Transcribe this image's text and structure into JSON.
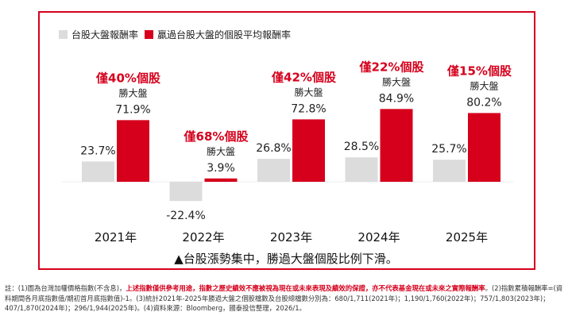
{
  "chart_data": {
    "type": "bar",
    "categories": [
      "2021年",
      "2022年",
      "2023年",
      "2024年",
      "2025年"
    ],
    "series": [
      {
        "name": "台股大盤報酬率",
        "values": [
          23.7,
          -22.4,
          26.8,
          28.5,
          25.7
        ],
        "labels": [
          "23.7%",
          "-22.4%",
          "26.8%",
          "28.5%",
          "25.7%"
        ],
        "color": "#dcdcdc"
      },
      {
        "name": "贏過台股大盤的個股平均報酬率",
        "values": [
          71.9,
          3.9,
          72.8,
          84.9,
          80.2
        ],
        "labels": [
          "71.9%",
          "3.9%",
          "72.8%",
          "84.9%",
          "80.2%"
        ],
        "color": "#d6001c"
      }
    ],
    "annotations": [
      {
        "title": "僅40%個股",
        "subtitle": "勝大盤"
      },
      {
        "title": "僅68%個股",
        "subtitle": "勝大盤"
      },
      {
        "title": "僅42%個股",
        "subtitle": "勝大盤"
      },
      {
        "title": "僅22%個股",
        "subtitle": "勝大盤"
      },
      {
        "title": "僅15%個股",
        "subtitle": "勝大盤"
      }
    ],
    "ylim": [
      -30,
      100
    ],
    "title": "",
    "xlabel": "",
    "ylabel": ""
  },
  "legend": {
    "market_label": "台股大盤報酬率",
    "winners_label": "贏過台股大盤的個股平均報酬率"
  },
  "conclusion": "▲台股漲勢集中，勝過大盤個股比例下滑。",
  "notes": {
    "part1": "註：(1)圖為台灣加權價格指數(不含息)，",
    "highlight": "上述指數僅供參考用途，指數之歷史績效不應被視為現在或未來表現及績效的保證，亦不代表基金現在或未來之實際報酬率",
    "part2": "。(2)指數累積報酬率=(資料期間各月底指數值/期初首月底指數值)-1。(3)統計2021年-2025年勝過大盤之個股檔數及台股總檔數分別為：680/1,711(2021年)；1,190/1,760(2022年)；757/1,803(2023年)；407/1,870(2024年)；296/1,944(2025年)。(4)資料來源：Bloomberg，國泰投信整理，2026/1。"
  }
}
